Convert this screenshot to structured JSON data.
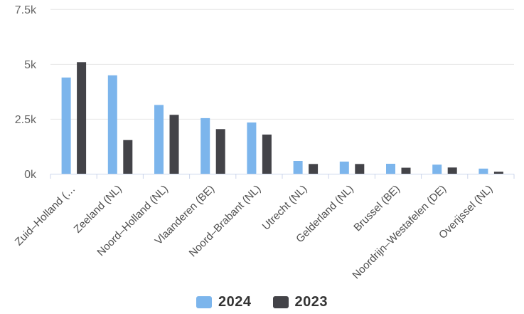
{
  "chart_data": {
    "type": "bar",
    "title": "",
    "categories": [
      "Zuid–Holland (…",
      "Zeeland (NL)",
      "Noord–Holland (NL)",
      "Vlaanderen (BE)",
      "Noord–Brabant (NL)",
      "Utrecht (NL)",
      "Gelderland (NL)",
      "Brussel (BE)",
      "Noordrijn–Westafelen (DE)",
      "Overijssel (NL)"
    ],
    "series": [
      {
        "name": "2024",
        "color": "#7cb5ec",
        "values": [
          4400,
          4500,
          3150,
          2550,
          2350,
          600,
          570,
          470,
          430,
          250
        ]
      },
      {
        "name": "2023",
        "color": "#434348",
        "values": [
          5100,
          1550,
          2700,
          2050,
          1800,
          460,
          460,
          290,
          300,
          110
        ]
      }
    ],
    "ylim": [
      0,
      7500
    ],
    "y_ticks": [
      {
        "value": 0,
        "label": "0k"
      },
      {
        "value": 2500,
        "label": "2.5k"
      },
      {
        "value": 5000,
        "label": "5k"
      },
      {
        "value": 7500,
        "label": "7.5k"
      }
    ],
    "grid": "horizontal",
    "legend_position": "bottom-center",
    "x_label_rotation": -45,
    "colors": {
      "grid": "#e6e6e6",
      "axis": "#ccd6eb",
      "y_label": "#666666",
      "x_label": "#4d4d4d",
      "legend_text": "#333333",
      "background": "#ffffff"
    }
  }
}
